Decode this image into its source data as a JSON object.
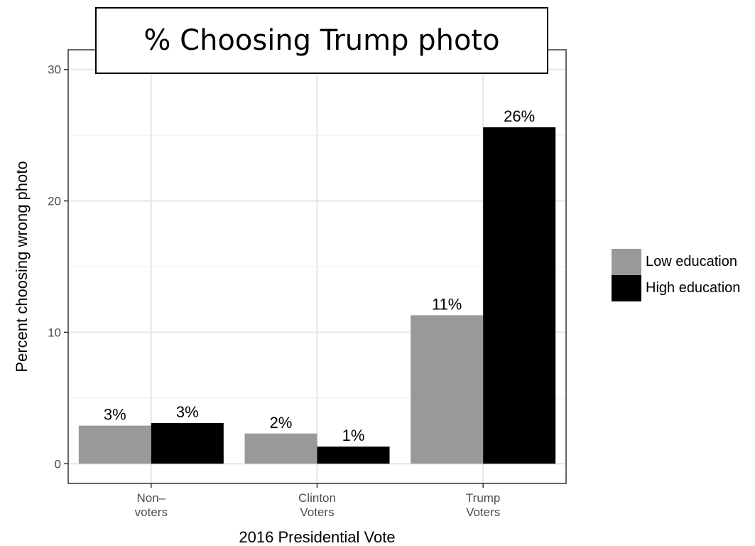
{
  "chart_data": {
    "type": "bar",
    "title": "% Choosing Trump photo",
    "xlabel": "2016 Presidential Vote",
    "ylabel": "Percent choosing wrong photo",
    "ylim": [
      -1.5,
      31.5
    ],
    "yticks": [
      0,
      10,
      20,
      30
    ],
    "grid": true,
    "legend_position": "right",
    "categories": [
      [
        "Non–",
        "voters"
      ],
      [
        "Clinton",
        "Voters"
      ],
      [
        "Trump",
        "Voters"
      ]
    ],
    "series": [
      {
        "name": "Low education",
        "color": "#999999",
        "values": [
          2.9,
          2.3,
          11.3
        ],
        "labels": [
          "3%",
          "2%",
          "11%"
        ]
      },
      {
        "name": "High education",
        "color": "#000000",
        "values": [
          3.1,
          1.3,
          25.6
        ],
        "labels": [
          "3%",
          "1%",
          "26%"
        ]
      }
    ]
  }
}
